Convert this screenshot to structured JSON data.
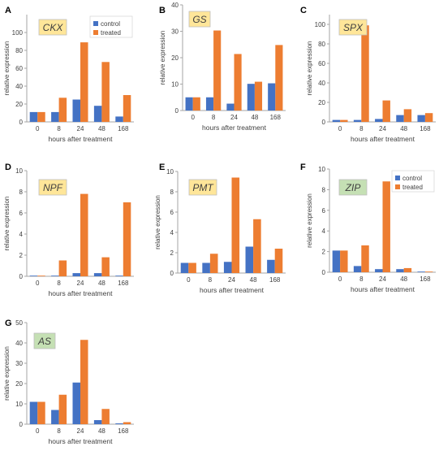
{
  "colors": {
    "control": "#4472C4",
    "treated": "#ED7D31",
    "axis": "#A6A6A6",
    "gene_box_yellow": "#FFE699",
    "gene_box_green": "#C5E0B4"
  },
  "shared_xlabel": "hours after treatment",
  "shared_ylabel": "relative expression",
  "legend": {
    "series": [
      "control",
      "treated"
    ]
  },
  "chart_data": [
    {
      "panel": "A",
      "gene": "CKX",
      "gene_box": "yellow",
      "type": "bar",
      "categories": [
        "0",
        "8",
        "24",
        "48",
        "168"
      ],
      "series": [
        {
          "name": "control",
          "values": [
            11,
            11,
            25,
            18,
            6
          ]
        },
        {
          "name": "treated",
          "values": [
            11,
            27,
            89,
            67,
            30
          ]
        }
      ],
      "xlabel": "hours after treatment",
      "ylabel": "relative expression",
      "ylim": [
        0,
        120
      ],
      "yticks": [
        0,
        20,
        40,
        60,
        80,
        100
      ],
      "legend": "top-right"
    },
    {
      "panel": "B",
      "gene": "GS",
      "gene_box": "yellow",
      "type": "bar",
      "categories": [
        "0",
        "8",
        "24",
        "48",
        "168"
      ],
      "series": [
        {
          "name": "control",
          "values": [
            5,
            5,
            2.6,
            10.1,
            10.3
          ]
        },
        {
          "name": "treated",
          "values": [
            5,
            30.3,
            21.4,
            10.9,
            24.8
          ]
        }
      ],
      "xlabel": "hours after treatment",
      "ylabel": "relative expression",
      "ylim": [
        0,
        40
      ],
      "yticks": [
        0,
        10,
        20,
        30,
        40
      ]
    },
    {
      "panel": "C",
      "gene": "SPX",
      "gene_box": "yellow",
      "type": "bar",
      "categories": [
        "0",
        "8",
        "24",
        "48",
        "168"
      ],
      "series": [
        {
          "name": "control",
          "values": [
            2,
            2,
            3,
            7,
            7
          ]
        },
        {
          "name": "treated",
          "values": [
            2,
            99,
            22,
            13,
            9
          ]
        }
      ],
      "xlabel": "hours after treatment",
      "ylabel": "relative expression",
      "ylim": [
        0,
        110
      ],
      "yticks": [
        0,
        20,
        40,
        60,
        80,
        100
      ]
    },
    {
      "panel": "D",
      "gene": "NPF",
      "gene_box": "yellow",
      "type": "bar",
      "categories": [
        "0",
        "8",
        "24",
        "48",
        "168"
      ],
      "series": [
        {
          "name": "control",
          "values": [
            0.05,
            0.05,
            0.3,
            0.3,
            0.05
          ]
        },
        {
          "name": "treated",
          "values": [
            0.05,
            1.5,
            7.8,
            1.8,
            7
          ]
        }
      ],
      "xlabel": "hours after treatment",
      "ylabel": "relative expression",
      "ylim": [
        0,
        10
      ],
      "yticks": [
        0,
        2,
        4,
        6,
        8,
        10
      ]
    },
    {
      "panel": "E",
      "gene": "PMT",
      "gene_box": "yellow",
      "type": "bar",
      "categories": [
        "0",
        "8",
        "24",
        "48",
        "168"
      ],
      "series": [
        {
          "name": "control",
          "values": [
            1,
            1,
            1.1,
            2.6,
            1.3
          ]
        },
        {
          "name": "treated",
          "values": [
            1,
            1.9,
            9.4,
            5.3,
            2.4
          ]
        }
      ],
      "xlabel": "hours after treatment",
      "ylabel": "relative expression",
      "ylim": [
        0,
        10
      ],
      "yticks": [
        0,
        2,
        4,
        6,
        8,
        10
      ]
    },
    {
      "panel": "F",
      "gene": "ZIP",
      "gene_box": "green",
      "type": "bar",
      "categories": [
        "0",
        "8",
        "24",
        "48",
        "168"
      ],
      "series": [
        {
          "name": "control",
          "values": [
            2.1,
            0.6,
            0.3,
            0.3,
            0.02
          ]
        },
        {
          "name": "treated",
          "values": [
            2.1,
            2.6,
            8.8,
            0.4,
            0.05
          ]
        }
      ],
      "xlabel": "hours after treatment",
      "ylabel": "relative expression",
      "ylim": [
        0,
        10
      ],
      "yticks": [
        0,
        2,
        4,
        6,
        8,
        10
      ],
      "legend": "top-right"
    },
    {
      "panel": "G",
      "gene": "AS",
      "gene_box": "green",
      "type": "bar",
      "categories": [
        "0",
        "8",
        "24",
        "48",
        "168"
      ],
      "series": [
        {
          "name": "control",
          "values": [
            11,
            7,
            20.5,
            2,
            0.4
          ]
        },
        {
          "name": "treated",
          "values": [
            11,
            14.5,
            41.5,
            7.5,
            1
          ]
        }
      ],
      "xlabel": "hours after treatment",
      "ylabel": "relative expression",
      "ylim": [
        0,
        50
      ],
      "yticks": [
        0,
        10,
        20,
        30,
        40,
        50
      ]
    }
  ]
}
